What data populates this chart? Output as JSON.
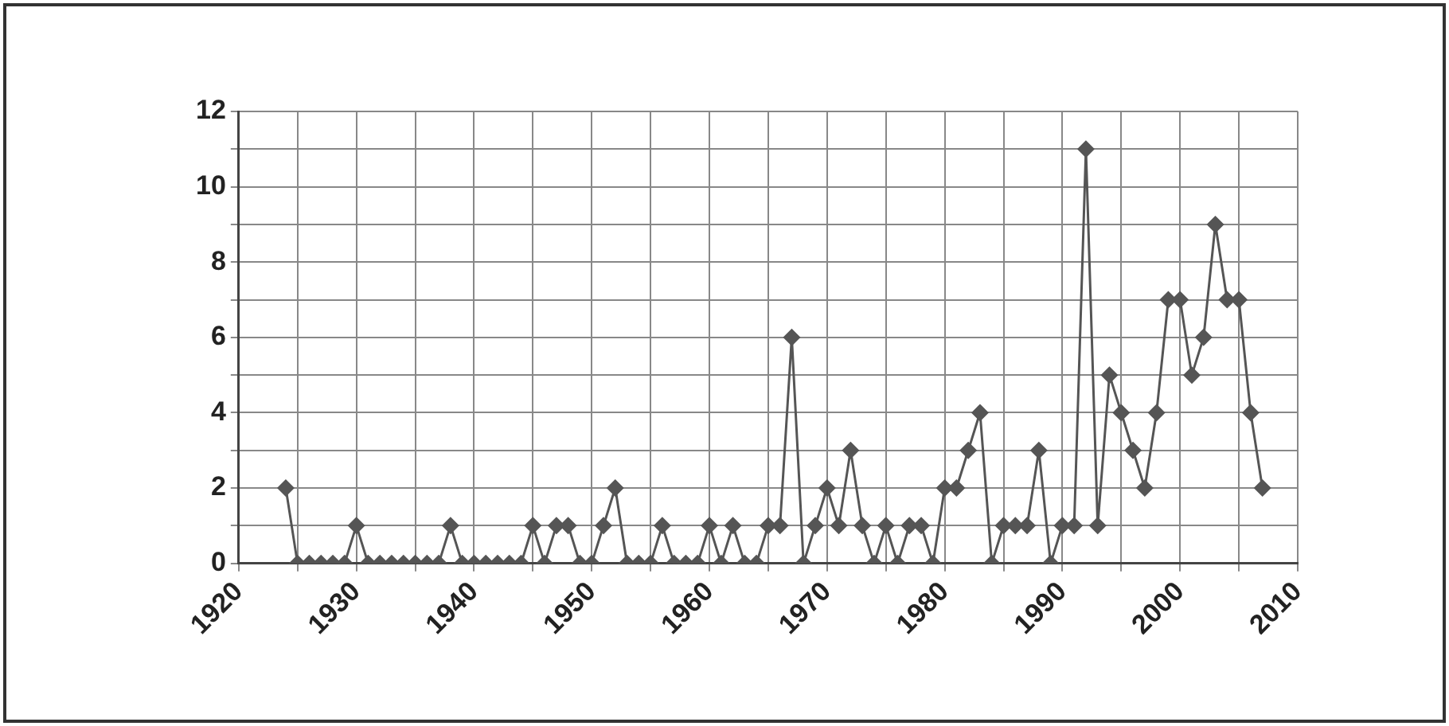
{
  "chart_data": {
    "type": "line",
    "marker": "diamond",
    "line_style": "solid",
    "grid": true,
    "legend": false,
    "x": [
      1924,
      1925,
      1926,
      1927,
      1928,
      1929,
      1930,
      1931,
      1932,
      1933,
      1934,
      1935,
      1936,
      1937,
      1938,
      1939,
      1940,
      1941,
      1942,
      1943,
      1944,
      1945,
      1946,
      1947,
      1948,
      1949,
      1950,
      1951,
      1952,
      1953,
      1954,
      1955,
      1956,
      1957,
      1958,
      1959,
      1960,
      1961,
      1962,
      1963,
      1964,
      1965,
      1966,
      1967,
      1968,
      1969,
      1970,
      1971,
      1972,
      1973,
      1974,
      1975,
      1976,
      1977,
      1978,
      1979,
      1980,
      1981,
      1982,
      1983,
      1984,
      1985,
      1986,
      1987,
      1988,
      1989,
      1990,
      1991,
      1992,
      1993,
      1994,
      1995,
      1996,
      1997,
      1998,
      1999,
      2000,
      2001,
      2002,
      2003,
      2004,
      2005,
      2006,
      2007
    ],
    "series": [
      {
        "color": "#555555",
        "values": [
          2,
          0,
          0,
          0,
          0,
          0,
          1,
          0,
          0,
          0,
          0,
          0,
          0,
          0,
          1,
          0,
          0,
          0,
          0,
          0,
          0,
          1,
          0,
          1,
          1,
          0,
          0,
          1,
          2,
          0,
          0,
          0,
          1,
          0,
          0,
          0,
          1,
          0,
          1,
          0,
          0,
          1,
          1,
          6,
          0,
          1,
          2,
          1,
          3,
          1,
          0,
          1,
          0,
          1,
          1,
          0,
          2,
          2,
          3,
          4,
          0,
          1,
          1,
          1,
          3,
          0,
          1,
          1,
          11,
          1,
          5,
          4,
          3,
          2,
          4,
          7,
          7,
          5,
          6,
          9,
          7,
          7,
          4,
          2
        ]
      }
    ],
    "xlim": [
      1920,
      2010
    ],
    "xticks": [
      1920,
      {
        "value": 1925,
        "label": null
      },
      1930,
      {
        "value": 1935,
        "label": null
      },
      1940,
      {
        "value": 1945,
        "label": null
      },
      1950,
      {
        "value": 1955,
        "label": null
      },
      1960,
      {
        "value": 1965,
        "label": null
      },
      1970,
      {
        "value": 1975,
        "label": null
      },
      1980,
      {
        "value": 1985,
        "label": null
      },
      1990,
      {
        "value": 1995,
        "label": null
      },
      2000,
      {
        "value": 2005,
        "label": null
      },
      2010
    ],
    "ylim": [
      0,
      12
    ],
    "yticks": [
      0,
      {
        "value": 1,
        "label": null
      },
      2,
      {
        "value": 3,
        "label": null
      },
      4,
      {
        "value": 5,
        "label": null
      },
      6,
      {
        "value": 7,
        "label": null
      },
      8,
      {
        "value": 9,
        "label": null
      },
      10,
      {
        "value": 11,
        "label": null
      },
      12
    ]
  }
}
